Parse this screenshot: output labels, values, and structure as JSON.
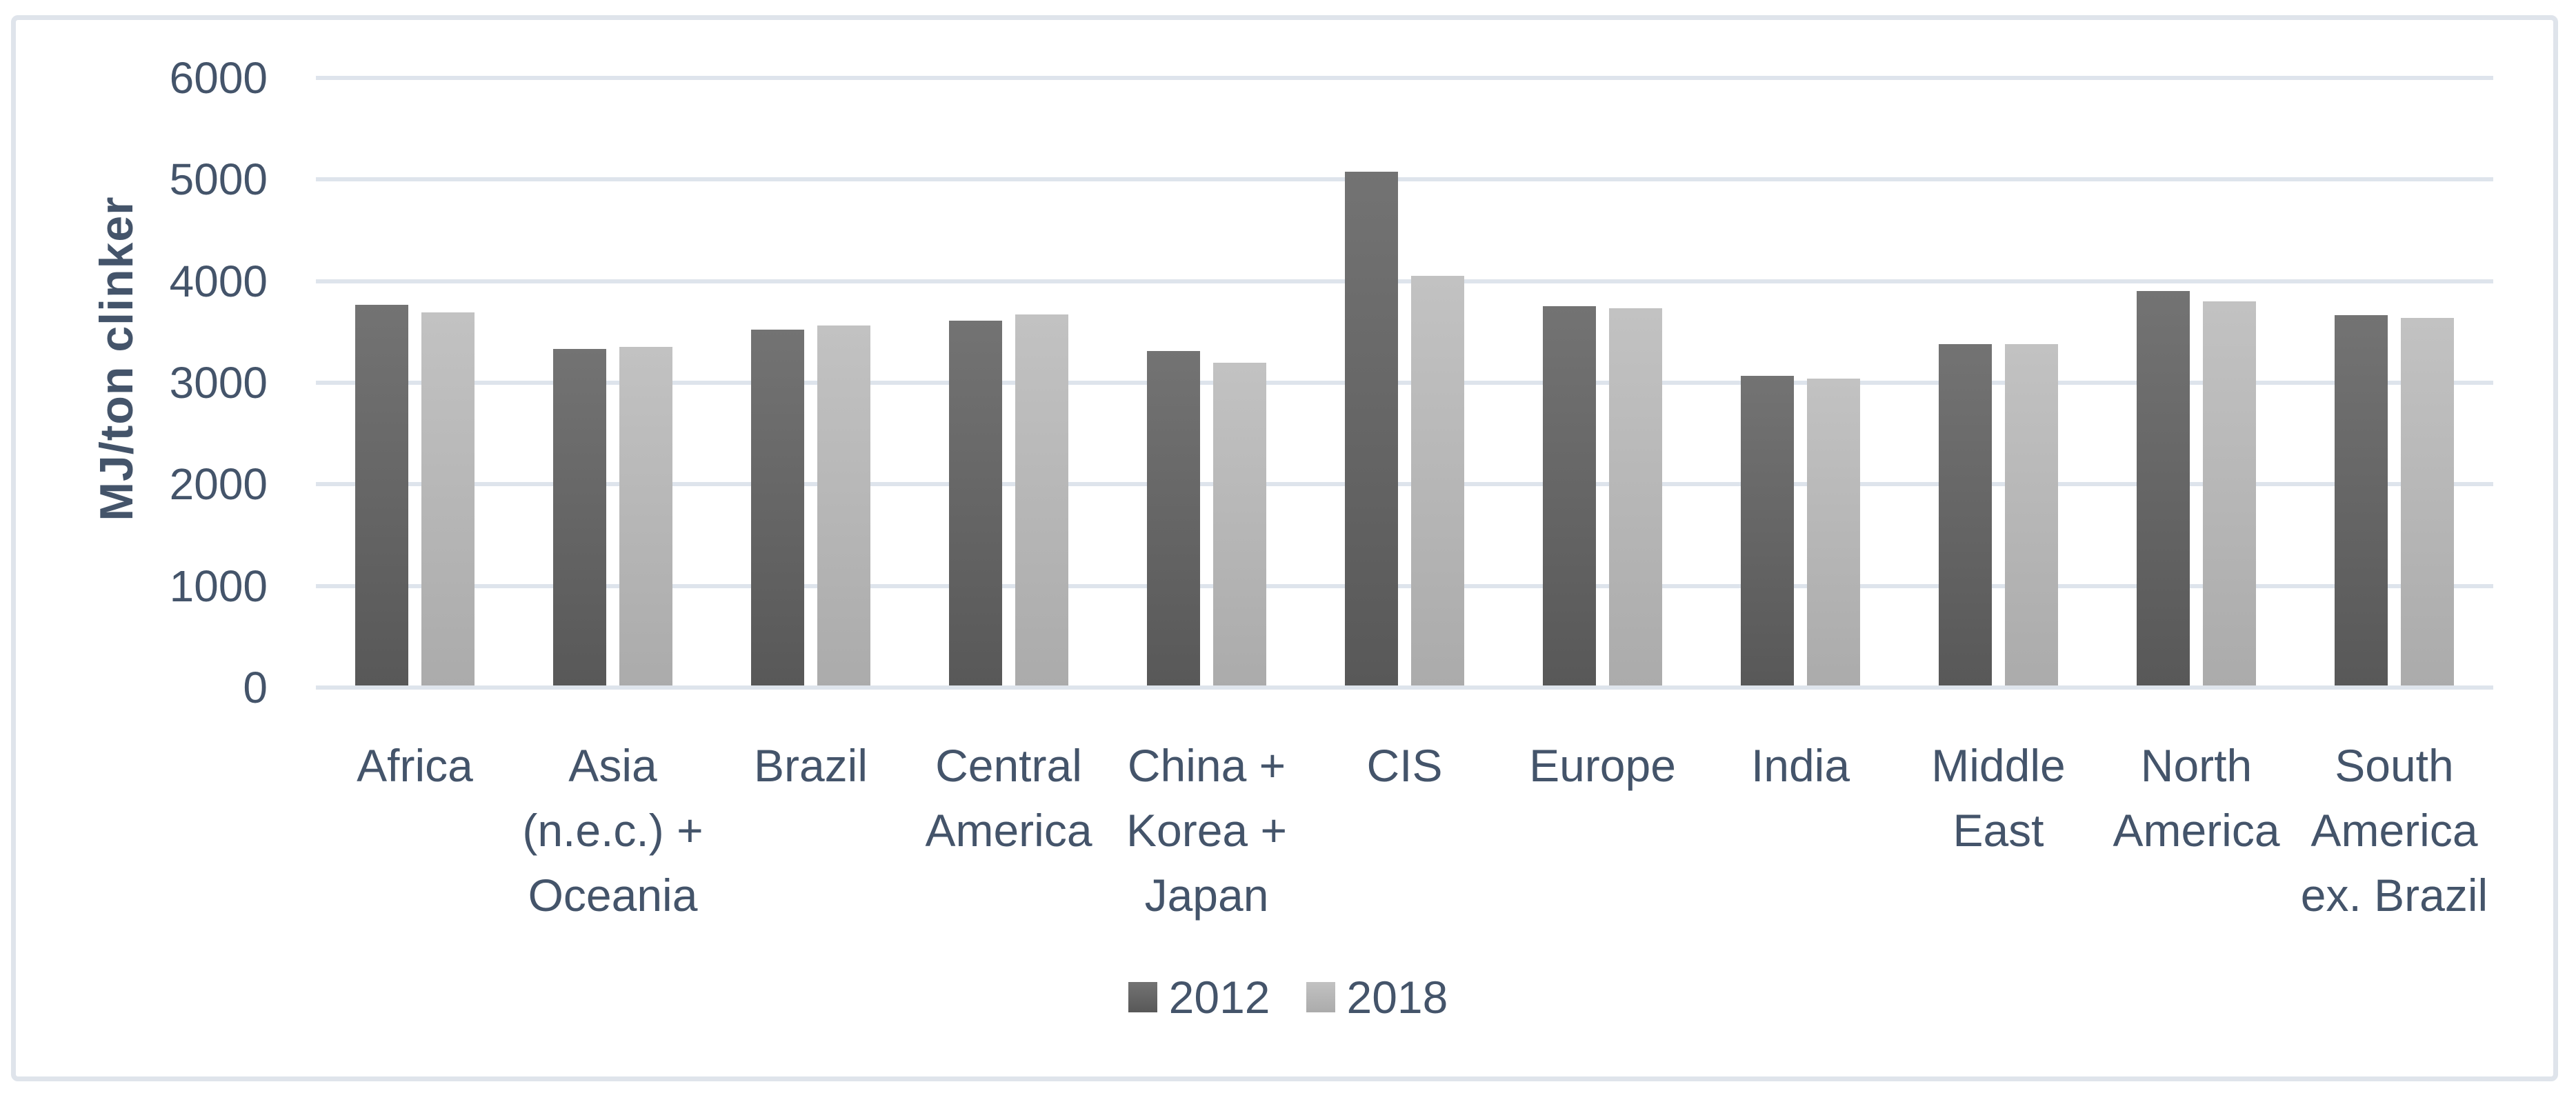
{
  "colors": {
    "text": "#44546A",
    "gridline": "#DEE4EC",
    "chart_border": "#DFE4EB",
    "background": "#FFFFFF",
    "series_2012_top": "#737373",
    "series_2012_bottom": "#585858",
    "series_2018_top": "#C2C2C2",
    "series_2018_bottom": "#ABABAB"
  },
  "chart_data": {
    "type": "bar",
    "title": "",
    "xlabel": "",
    "ylabel": "MJ/ton clinker",
    "ylim": [
      0,
      6000
    ],
    "yticks": [
      0,
      1000,
      2000,
      3000,
      4000,
      5000,
      6000
    ],
    "grid": true,
    "legend_position": "bottom",
    "categories": [
      "Africa",
      "Asia (n.e.c.) + Oceania",
      "Brazil",
      "Central America",
      "China + Korea + Japan",
      "CIS",
      "Europe",
      "India",
      "Middle East",
      "North America",
      "South America ex. Brazil"
    ],
    "category_lines": [
      [
        "Africa"
      ],
      [
        "Asia",
        "(n.e.c.) +",
        "Oceania"
      ],
      [
        "Brazil"
      ],
      [
        "Central",
        "America"
      ],
      [
        "China +",
        "Korea +",
        "Japan"
      ],
      [
        "CIS"
      ],
      [
        "Europe"
      ],
      [
        "India"
      ],
      [
        "Middle",
        "East"
      ],
      [
        "North",
        "America"
      ],
      [
        "South",
        "America",
        "ex. Brazil"
      ]
    ],
    "series": [
      {
        "name": "2012",
        "color_top": "#737373",
        "color_bottom": "#585858",
        "values": [
          3770,
          3330,
          3520,
          3610,
          3310,
          5080,
          3750,
          3070,
          3380,
          3900,
          3665
        ]
      },
      {
        "name": "2018",
        "color_top": "#C2C2C2",
        "color_bottom": "#ABABAB",
        "values": [
          3690,
          3350,
          3560,
          3670,
          3200,
          4050,
          3730,
          3040,
          3380,
          3800,
          3640
        ]
      }
    ]
  }
}
